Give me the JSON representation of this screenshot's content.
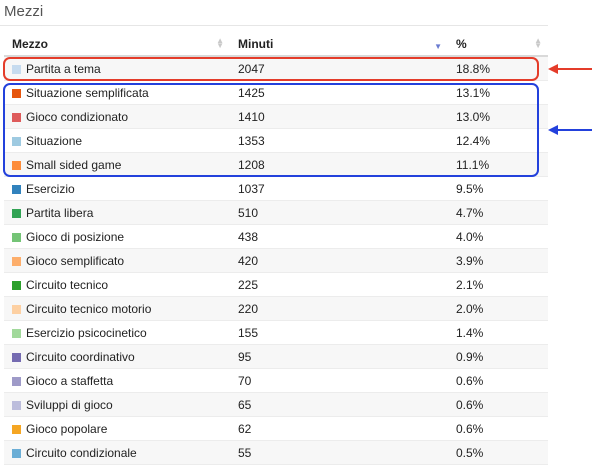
{
  "panel": {
    "title": "Mezzi"
  },
  "table": {
    "headers": {
      "mezzo": "Mezzo",
      "minuti": "Minuti",
      "percent": "%"
    },
    "sorted_column": "minuti",
    "rows": [
      {
        "label": "Partita a tema",
        "minuti": "2047",
        "percent": "18.8%",
        "color": "#c6dbef"
      },
      {
        "label": "Situazione semplificata",
        "minuti": "1425",
        "percent": "13.1%",
        "color": "#e6550d"
      },
      {
        "label": "Gioco condizionato",
        "minuti": "1410",
        "percent": "13.0%",
        "color": "#de5b5b"
      },
      {
        "label": "Situazione",
        "minuti": "1353",
        "percent": "12.4%",
        "color": "#9ecae1"
      },
      {
        "label": "Small sided game",
        "minuti": "1208",
        "percent": "11.1%",
        "color": "#fd8d3c"
      },
      {
        "label": "Esercizio",
        "minuti": "1037",
        "percent": "9.5%",
        "color": "#3182bd"
      },
      {
        "label": "Partita libera",
        "minuti": "510",
        "percent": "4.7%",
        "color": "#31a354"
      },
      {
        "label": "Gioco di posizione",
        "minuti": "438",
        "percent": "4.0%",
        "color": "#74c476"
      },
      {
        "label": "Gioco semplificato",
        "minuti": "420",
        "percent": "3.9%",
        "color": "#fdae6b"
      },
      {
        "label": "Circuito tecnico",
        "minuti": "225",
        "percent": "2.1%",
        "color": "#2ca02c"
      },
      {
        "label": "Circuito tecnico motorio",
        "minuti": "220",
        "percent": "2.0%",
        "color": "#fdd0a2"
      },
      {
        "label": "Esercizio psicocinetico",
        "minuti": "155",
        "percent": "1.4%",
        "color": "#a1d99b"
      },
      {
        "label": "Circuito coordinativo",
        "minuti": "95",
        "percent": "0.9%",
        "color": "#756bb1"
      },
      {
        "label": "Gioco a staffetta",
        "minuti": "70",
        "percent": "0.6%",
        "color": "#9e9ac8"
      },
      {
        "label": "Sviluppi di gioco",
        "minuti": "65",
        "percent": "0.6%",
        "color": "#bcbddc"
      },
      {
        "label": "Gioco popolare",
        "minuti": "62",
        "percent": "0.6%",
        "color": "#f5a623"
      },
      {
        "label": "Circuito condizionale",
        "minuti": "55",
        "percent": "0.5%",
        "color": "#6baed6"
      }
    ]
  },
  "annotations": {
    "red_color": "#e43c2a",
    "blue_color": "#2341dc"
  }
}
